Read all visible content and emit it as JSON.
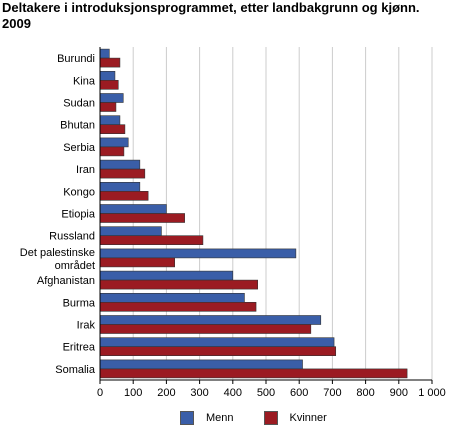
{
  "title_line1": "Deltakere i introduksjonsprogrammet, etter landbakgrunn og kjønn.",
  "title_line2": "2009",
  "colors": {
    "menn": "#3a5ea8",
    "kvinner": "#9b1b22",
    "grid": "#cccccc",
    "axis": "#000000"
  },
  "chart_data": {
    "type": "bar",
    "orientation": "horizontal",
    "title": "Deltakere i introduksjonsprogrammet, etter landbakgrunn og kjønn. 2009",
    "categories": [
      "Burundi",
      "Kina",
      "Sudan",
      "Bhutan",
      "Serbia",
      "Iran",
      "Kongo",
      "Etiopia",
      "Russland",
      "Det palestinske området",
      "Afghanistan",
      "Burma",
      "Irak",
      "Eritrea",
      "Somalia"
    ],
    "category_lines": [
      [
        "Burundi"
      ],
      [
        "Kina"
      ],
      [
        "Sudan"
      ],
      [
        "Bhutan"
      ],
      [
        "Serbia"
      ],
      [
        "Iran"
      ],
      [
        "Kongo"
      ],
      [
        "Etiopia"
      ],
      [
        "Russland"
      ],
      [
        "Det palestinske",
        "området"
      ],
      [
        "Afghanistan"
      ],
      [
        "Burma"
      ],
      [
        "Irak"
      ],
      [
        "Eritrea"
      ],
      [
        "Somalia"
      ]
    ],
    "series": [
      {
        "name": "Menn",
        "values": [
          28,
          45,
          70,
          60,
          85,
          120,
          120,
          200,
          185,
          590,
          400,
          435,
          665,
          705,
          610
        ]
      },
      {
        "name": "Kvinner",
        "values": [
          60,
          55,
          48,
          75,
          72,
          135,
          145,
          255,
          310,
          225,
          475,
          470,
          635,
          710,
          925
        ]
      }
    ],
    "xlim": [
      0,
      1000
    ],
    "xticks": [
      0,
      100,
      200,
      300,
      400,
      500,
      600,
      700,
      800,
      900,
      1000
    ],
    "xtick_labels": [
      "0",
      "100",
      "200",
      "300",
      "400",
      "500",
      "600",
      "700",
      "800",
      "900",
      "1 000"
    ],
    "grid": true,
    "legend_position": "bottom"
  }
}
